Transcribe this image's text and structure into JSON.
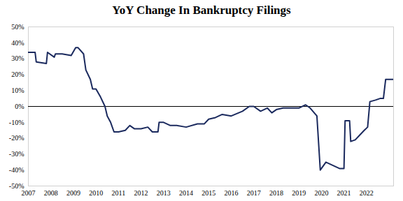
{
  "chart_data": {
    "type": "line",
    "title": "YoY Change In Bankruptcy Filings",
    "color": "#1b2a5e",
    "grid": false,
    "x": [
      2007.0,
      2007.3,
      2007.35,
      2007.8,
      2007.85,
      2008.15,
      2008.2,
      2008.5,
      2008.9,
      2009.1,
      2009.2,
      2009.45,
      2009.55,
      2009.75,
      2009.85,
      2010.0,
      2010.2,
      2010.4,
      2010.5,
      2010.65,
      2010.8,
      2011.0,
      2011.3,
      2011.5,
      2011.7,
      2012.0,
      2012.3,
      2012.5,
      2012.75,
      2012.8,
      2013.0,
      2013.3,
      2013.6,
      2014.0,
      2014.5,
      2014.8,
      2015.0,
      2015.3,
      2015.6,
      2016.0,
      2016.5,
      2016.8,
      2017.0,
      2017.3,
      2017.6,
      2017.8,
      2018.0,
      2018.3,
      2018.6,
      2019.0,
      2019.3,
      2019.5,
      2019.8,
      2019.95,
      2020.2,
      2020.5,
      2020.8,
      2021.0,
      2021.05,
      2021.25,
      2021.3,
      2021.5,
      2021.7,
      2021.9,
      2022.05,
      2022.15,
      2022.4,
      2022.6,
      2022.75,
      2022.85,
      2023.2
    ],
    "values": [
      34,
      34,
      28,
      27,
      34,
      31,
      33,
      33,
      32,
      37,
      37,
      33,
      23,
      17,
      11,
      11,
      6,
      0,
      -6,
      -10,
      -16,
      -16,
      -15,
      -12,
      -14,
      -14,
      -13,
      -16,
      -16,
      -10,
      -10,
      -12,
      -12,
      -13,
      -11,
      -11,
      -8,
      -7,
      -5,
      -6,
      -3,
      0,
      0,
      -3,
      -1,
      -4,
      -2,
      -1,
      -1,
      -1,
      1,
      -1,
      -6,
      -40,
      -35,
      -37,
      -39,
      -39,
      -9,
      -9,
      -22,
      -21,
      -18,
      -15,
      -13,
      3,
      4,
      5,
      5,
      17,
      17
    ],
    "xlim": [
      2007,
      2023.2
    ],
    "xticks": [
      2007,
      2008,
      2009,
      2010,
      2011,
      2012,
      2013,
      2014,
      2015,
      2016,
      2017,
      2018,
      2019,
      2020,
      2021,
      2022
    ],
    "ylim": [
      -50,
      50
    ],
    "yticks": [
      {
        "value": -50,
        "label": "-50%"
      },
      {
        "value": -40,
        "label": "-40%"
      },
      {
        "value": -30,
        "label": "-30%"
      },
      {
        "value": -20,
        "label": "-20%"
      },
      {
        "value": -10,
        "label": "-10%"
      },
      {
        "value": 0,
        "label": "0%"
      },
      {
        "value": 10,
        "label": "10%"
      },
      {
        "value": 20,
        "label": "20%"
      },
      {
        "value": 30,
        "label": "30%"
      },
      {
        "value": 40,
        "label": "40%"
      },
      {
        "value": 50,
        "label": "50%"
      }
    ]
  }
}
